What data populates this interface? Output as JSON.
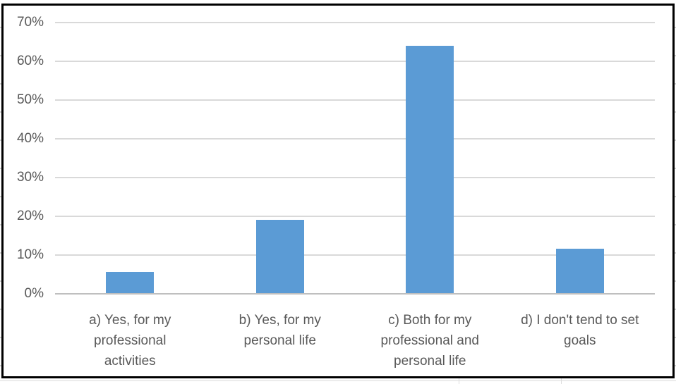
{
  "chart_data": {
    "type": "bar",
    "title": "",
    "xlabel": "",
    "ylabel": "",
    "legend": "none",
    "grid": true,
    "categories": [
      "a) Yes, for my professional activities",
      "b) Yes, for my personal life",
      "c) Both for my professional and personal life",
      "d) I don't tend to set goals"
    ],
    "category_label_lines": [
      [
        "a) Yes, for my",
        "professional",
        "activities"
      ],
      [
        "b) Yes, for my",
        "personal life"
      ],
      [
        "c) Both for my",
        "professional and",
        "personal life"
      ],
      [
        "d) I don't tend to set",
        "goals"
      ]
    ],
    "values": [
      5.5,
      19,
      64,
      11.5
    ],
    "value_unit": "%",
    "ylim": [
      0,
      70
    ],
    "ytick_step": 10,
    "ytick_labels": [
      "0%",
      "10%",
      "20%",
      "30%",
      "40%",
      "50%",
      "60%",
      "70%"
    ],
    "colors": {
      "bar": "#5B9BD5",
      "gridline": "#D9D9D9",
      "axis_line": "#BFBFBF",
      "tick_text": "#595959",
      "chart_border": "#000000"
    }
  }
}
